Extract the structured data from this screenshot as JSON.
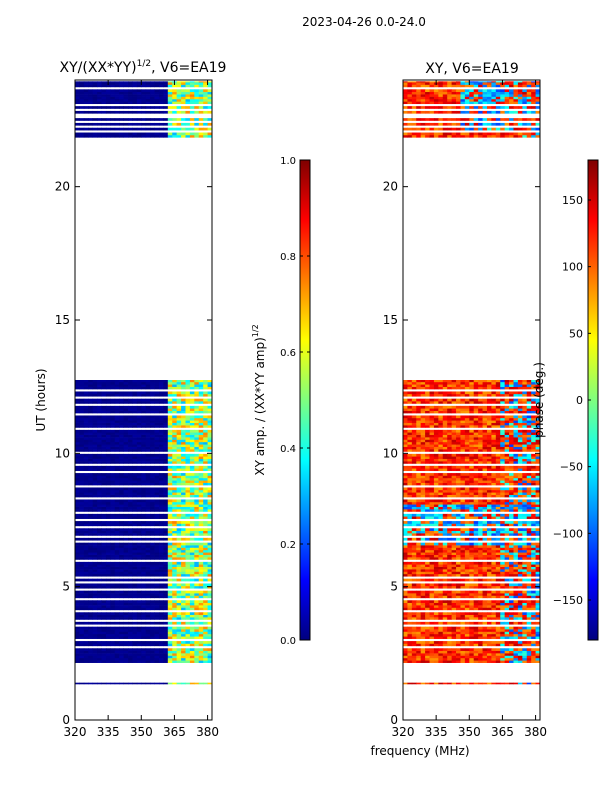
{
  "suptitle": "2023-04-26 0.0-24.0",
  "colors": {
    "jet": [
      "#00007f",
      "#0000ff",
      "#007fff",
      "#00ffff",
      "#7fff7f",
      "#ffff00",
      "#ff7f00",
      "#ff0000",
      "#7f0000"
    ],
    "background": "#ffffff",
    "axis": "#000000"
  },
  "chart_data": [
    {
      "type": "heatmap",
      "title_main": "XY/(XX*YY)",
      "title_sup": "1/2",
      "title_tail": ", V6=EA19",
      "ylabel": "UT (hours)",
      "xlim": [
        320,
        382
      ],
      "ylim": [
        0,
        24
      ],
      "xticks": [
        320,
        335,
        350,
        365,
        380
      ],
      "yticks": [
        0,
        5,
        10,
        15,
        20
      ],
      "data_ranges_hours": [
        [
          1.35,
          1.4
        ],
        [
          2.15,
          12.75
        ],
        [
          21.85,
          23.95
        ]
      ],
      "gap_rows_hours": [
        2.7,
        3.0,
        3.55,
        3.75,
        4.1,
        4.55,
        4.9,
        5.15,
        5.3,
        6.0,
        6.7,
        6.9,
        7.2,
        7.5,
        7.8,
        8.3,
        8.75,
        8.8,
        9.3,
        9.6,
        10.05,
        10.9,
        11.5,
        11.8,
        12.1,
        12.4,
        22.05,
        22.25,
        22.4,
        22.6,
        22.7,
        22.85,
        23.1,
        23.7
      ],
      "band_note": "low amplitude (~0.0) for 320-362 MHz; higher amplitude (0.3-0.7) for 362-382 MHz",
      "colorbar": {
        "label_main": "XY amp. / (XX*YY amp)",
        "label_sup": "1/2",
        "range": [
          0.0,
          1.0
        ],
        "ticks": [
          "0.0",
          "0.2",
          "0.4",
          "0.6",
          "0.8",
          "1.0"
        ]
      }
    },
    {
      "type": "heatmap",
      "title": "XY, V6=EA19",
      "xlabel": "frequency (MHz)",
      "xlim": [
        320,
        382
      ],
      "ylim": [
        0,
        24
      ],
      "xticks": [
        320,
        335,
        350,
        365,
        380
      ],
      "yticks": [
        0,
        5,
        10,
        15,
        20
      ],
      "data_ranges_hours": [
        [
          1.35,
          1.4
        ],
        [
          2.15,
          12.75
        ],
        [
          21.85,
          23.95
        ]
      ],
      "gap_rows_hours": [
        2.7,
        3.0,
        3.55,
        3.75,
        4.1,
        4.55,
        4.9,
        5.15,
        5.3,
        6.0,
        6.7,
        6.9,
        7.2,
        7.5,
        7.8,
        8.3,
        8.75,
        8.8,
        9.3,
        9.6,
        10.05,
        10.9,
        11.5,
        11.8,
        12.1,
        12.4,
        22.05,
        22.25,
        22.4,
        22.6,
        22.7,
        22.85,
        23.1,
        23.7
      ],
      "band_note": "phase mostly +100 to +180 deg (red/orange) with blue/cyan patches near -100 deg",
      "colorbar": {
        "label": "phase (deg.)",
        "range": [
          -180,
          180
        ],
        "ticks": [
          "−150",
          "−100",
          "−50",
          "0",
          "50",
          "100",
          "150"
        ],
        "tick_values": [
          -150,
          -100,
          -50,
          0,
          50,
          100,
          150
        ]
      }
    }
  ]
}
